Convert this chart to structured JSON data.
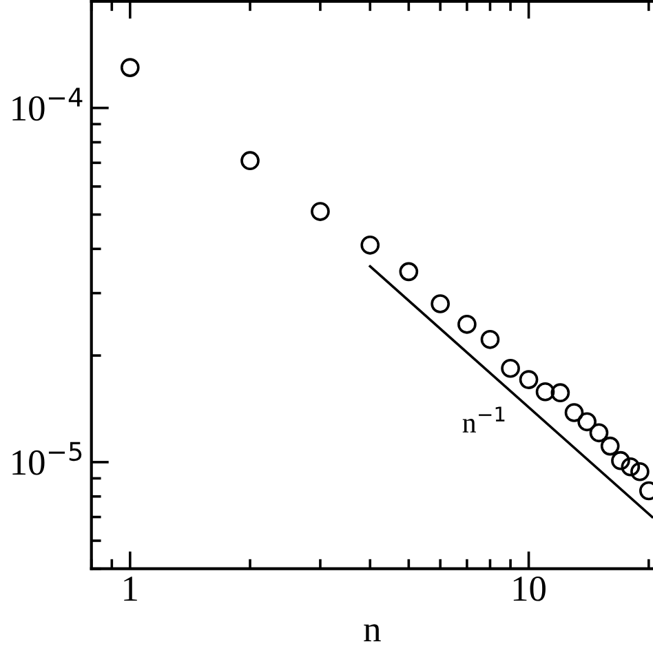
{
  "chart_data": {
    "type": "scatter",
    "xlabel": "n",
    "log": "xy",
    "grid": false,
    "legend": false,
    "xlim": [
      0.8,
      20.5
    ],
    "xticks": [
      1,
      10
    ],
    "ylim": [
      5e-06,
      0.0002
    ],
    "yticks": [
      {
        "value": 1e-05,
        "label": "10$^{−5}$"
      },
      {
        "value": 0.0001,
        "label": "10$^{−4}$"
      }
    ],
    "series": [
      {
        "color": "#000000",
        "marker": "circle",
        "x": [
          1,
          2,
          3,
          4,
          5,
          6,
          7,
          8,
          9,
          10,
          11,
          12,
          13,
          14,
          15,
          16,
          17,
          18,
          19,
          20
        ],
        "values": [
          0.00013,
          7.1e-05,
          5.1e-05,
          4.1e-05,
          3.45e-05,
          2.8e-05,
          2.45e-05,
          2.22e-05,
          1.84e-05,
          1.71e-05,
          1.58e-05,
          1.57e-05,
          1.38e-05,
          1.3e-05,
          1.21e-05,
          1.11e-05,
          1.01e-05,
          9.7e-06,
          9.4e-06,
          8.3e-06
        ]
      },
      {
        "type": "line",
        "color": "#000000",
        "marker": "none",
        "line_style": "solid",
        "x": [
          4,
          20.4
        ],
        "values": [
          3.57e-05,
          7e-06
        ]
      }
    ],
    "annotations": [
      "n$^{−1}$"
    ]
  }
}
